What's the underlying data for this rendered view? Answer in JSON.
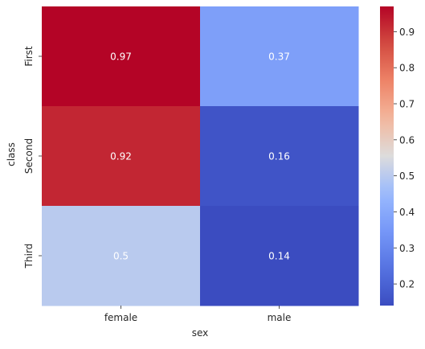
{
  "chart_data": {
    "type": "heatmap",
    "title": "",
    "xlabel": "sex",
    "ylabel": "class",
    "x_categories": [
      "female",
      "male"
    ],
    "y_categories": [
      "First",
      "Second",
      "Third"
    ],
    "values": [
      [
        0.97,
        0.37
      ],
      [
        0.92,
        0.16
      ],
      [
        0.5,
        0.14
      ]
    ],
    "value_labels": [
      [
        "0.97",
        "0.37"
      ],
      [
        "0.92",
        "0.16"
      ],
      [
        "0.5",
        "0.14"
      ]
    ],
    "colormap": "coolwarm",
    "colorbar": {
      "vmin": 0.14,
      "vmax": 0.97,
      "ticks": [
        0.2,
        0.3,
        0.4,
        0.5,
        0.6,
        0.7,
        0.8,
        0.9
      ],
      "tick_labels": [
        "0.2",
        "0.3",
        "0.4",
        "0.5",
        "0.6",
        "0.7",
        "0.8",
        "0.9"
      ]
    },
    "annotation_color": "#ffffff"
  }
}
